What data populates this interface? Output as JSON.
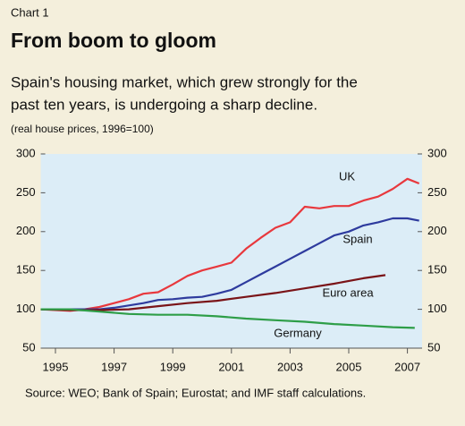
{
  "chart_data": {
    "type": "line",
    "chart_label": "Chart 1",
    "title": "From boom to gloom",
    "subtitle": [
      "Spain's housing market, which grew strongly for the",
      "past ten years, is undergoing a sharp decline."
    ],
    "note": "(real house prices, 1996=100)",
    "source": "Source: WEO; Bank of Spain; Eurostat; and IMF staff calculations.",
    "xlim": [
      1995,
      2008
    ],
    "xticks": [
      {
        "value": 1995.5,
        "label": "1995"
      },
      {
        "value": 1997.5,
        "label": "1997"
      },
      {
        "value": 1999.5,
        "label": "1999"
      },
      {
        "value": 2001.5,
        "label": "2001"
      },
      {
        "value": 2003.5,
        "label": "2003"
      },
      {
        "value": 2005.5,
        "label": "2005"
      },
      {
        "value": 2007.5,
        "label": "2007"
      }
    ],
    "ylim": [
      50,
      300
    ],
    "yticks": [
      50,
      100,
      150,
      200,
      250,
      300
    ],
    "grid": false,
    "series": [
      {
        "name": "UK",
        "color": "#e8383d",
        "x": [
          1995,
          1996,
          1996.5,
          1997,
          1997.5,
          1998,
          1998.5,
          1999,
          1999.5,
          2000,
          2000.5,
          2001,
          2001.5,
          2002,
          2002.5,
          2003,
          2003.5,
          2004,
          2004.5,
          2005,
          2005.5,
          2006,
          2006.5,
          2007,
          2007.5,
          2007.9
        ],
        "values": [
          100,
          98,
          100,
          103,
          108,
          113,
          120,
          122,
          132,
          143,
          150,
          155,
          160,
          178,
          192,
          205,
          212,
          232,
          230,
          233,
          233,
          240,
          245,
          255,
          268,
          262
        ]
      },
      {
        "name": "Spain",
        "color": "#2e3b9e",
        "x": [
          1995,
          1996,
          1997,
          1997.5,
          1998,
          1998.5,
          1999,
          1999.5,
          2000,
          2000.5,
          2001,
          2001.5,
          2002,
          2002.5,
          2003,
          2003.5,
          2004,
          2004.5,
          2005,
          2005.5,
          2006,
          2006.5,
          2007,
          2007.5,
          2007.9
        ],
        "values": [
          100,
          100,
          100,
          102,
          105,
          108,
          112,
          113,
          115,
          116,
          120,
          125,
          135,
          145,
          155,
          165,
          175,
          185,
          195,
          200,
          208,
          212,
          217,
          217,
          214
        ]
      },
      {
        "name": "Euro area",
        "color": "#7a1418",
        "x": [
          1995,
          1996,
          1997,
          1998,
          1999,
          2000,
          2001,
          2002,
          2003,
          2004,
          2005,
          2006,
          2006.75
        ],
        "values": [
          100,
          99,
          99,
          100,
          104,
          108,
          111,
          116,
          121,
          127,
          133,
          140,
          144
        ]
      },
      {
        "name": "Germany",
        "color": "#2e9e48",
        "x": [
          1995,
          1996,
          1997,
          1998,
          1999,
          2000,
          2001,
          2002,
          2003,
          2004,
          2005,
          2006,
          2007,
          2007.75
        ],
        "values": [
          100,
          100,
          97,
          94,
          93,
          93,
          91,
          88,
          86,
          84,
          81,
          79,
          77,
          76
        ]
      }
    ]
  }
}
